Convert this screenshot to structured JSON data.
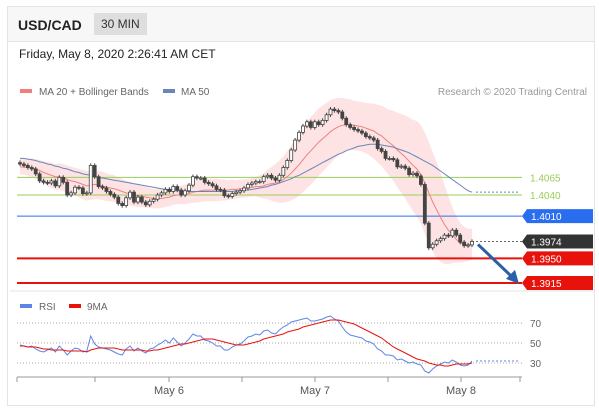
{
  "header": {
    "symbol": "USD/CAD",
    "timeframe": "30 MIN"
  },
  "datetime": "Friday, May 8, 2020 2:26:41 AM CET",
  "colors": {
    "up_candle": "#444444",
    "down_candle": "#444444",
    "ma20": "#f08080",
    "bands": "#fde0e0",
    "ma50": "#6a86b8",
    "support": "#e8120c",
    "resistance": "#9acd5a",
    "pivot": "#2a6ef0",
    "current": "#333333",
    "rsi": "#5b86e5",
    "rsi_ma": "#e8120c",
    "arrow": "#2b5fa8"
  },
  "chart_data": [
    {
      "type": "line",
      "title": "",
      "legend": {
        "ma20": "MA 20 + Bollinger Bands",
        "ma50": "MA 50",
        "placement": "top-left"
      },
      "credit": "Research © 2020 Trading Central",
      "ylim": [
        1.3905,
        1.4175
      ],
      "x_ticks": [
        "May 6",
        "May 7",
        "May 8"
      ],
      "levels": [
        {
          "value": 1.4065,
          "label": "1.4065",
          "kind": "resistance"
        },
        {
          "value": 1.404,
          "label": "1.4040",
          "kind": "resistance"
        },
        {
          "value": 1.401,
          "label": "1.4010",
          "kind": "pivot"
        },
        {
          "value": 1.3974,
          "label": "1.3974",
          "kind": "current"
        },
        {
          "value": 1.395,
          "label": "1.3950",
          "kind": "support"
        },
        {
          "value": 1.3915,
          "label": "1.3915",
          "kind": "support"
        }
      ],
      "close": [
        1.4084,
        1.4082,
        1.4079,
        1.4077,
        1.407,
        1.406,
        1.4058,
        1.4057,
        1.406,
        1.4053,
        1.4065,
        1.4058,
        1.404,
        1.4043,
        1.4051,
        1.405,
        1.4042,
        1.4043,
        1.4082,
        1.4066,
        1.4052,
        1.405,
        1.4045,
        1.4041,
        1.4037,
        1.4028,
        1.4025,
        1.4036,
        1.4044,
        1.403,
        1.4037,
        1.403,
        1.4026,
        1.4031,
        1.4034,
        1.404,
        1.4043,
        1.4048,
        1.4045,
        1.4052,
        1.4047,
        1.404,
        1.4046,
        1.4054,
        1.4066,
        1.4064,
        1.4064,
        1.4058,
        1.4056,
        1.4053,
        1.4048,
        1.4047,
        1.4039,
        1.4038,
        1.4042,
        1.4044,
        1.4046,
        1.405,
        1.4055,
        1.4057,
        1.4059,
        1.4059,
        1.4066,
        1.4068,
        1.4064,
        1.4061,
        1.4068,
        1.4079,
        1.4089,
        1.4104,
        1.4118,
        1.4129,
        1.4138,
        1.4144,
        1.4136,
        1.4144,
        1.414,
        1.4146,
        1.4154,
        1.4162,
        1.416,
        1.4158,
        1.4149,
        1.414,
        1.4136,
        1.4133,
        1.4131,
        1.4128,
        1.4123,
        1.4121,
        1.4118,
        1.4106,
        1.4102,
        1.4092,
        1.4092,
        1.409,
        1.408,
        1.4081,
        1.4078,
        1.4069,
        1.4071,
        1.4067,
        1.4055,
        1.4,
        1.3965,
        1.397,
        1.3975,
        1.3978,
        1.3983,
        1.3982,
        1.399,
        1.3983,
        1.3973,
        1.3968,
        1.3969,
        1.3974
      ],
      "ma20": [
        1.408,
        1.408,
        1.4079,
        1.4079,
        1.4077,
        1.4075,
        1.4072,
        1.407,
        1.4068,
        1.4066,
        1.4066,
        1.4065,
        1.4062,
        1.406,
        1.4059,
        1.4057,
        1.4055,
        1.4053,
        1.4054,
        1.4055,
        1.4054,
        1.4053,
        1.4051,
        1.405,
        1.4049,
        1.4047,
        1.4045,
        1.4043,
        1.4042,
        1.404,
        1.4039,
        1.4038,
        1.4037,
        1.4036,
        1.4035,
        1.4035,
        1.4035,
        1.4036,
        1.4037,
        1.4039,
        1.404,
        1.404,
        1.4041,
        1.4042,
        1.4044,
        1.4045,
        1.4046,
        1.4047,
        1.4047,
        1.4047,
        1.4047,
        1.4047,
        1.4047,
        1.4047,
        1.4048,
        1.4048,
        1.4049,
        1.4049,
        1.405,
        1.4051,
        1.4052,
        1.4052,
        1.4053,
        1.4055,
        1.4056,
        1.4057,
        1.4059,
        1.4062,
        1.4066,
        1.4071,
        1.4077,
        1.4083,
        1.409,
        1.4097,
        1.4103,
        1.4109,
        1.4115,
        1.412,
        1.4125,
        1.413,
        1.4134,
        1.4137,
        1.4139,
        1.414,
        1.414,
        1.4139,
        1.4138,
        1.4137,
        1.4135,
        1.4133,
        1.4131,
        1.4127,
        1.4124,
        1.4119,
        1.4114,
        1.411,
        1.4104,
        1.4099,
        1.4094,
        1.4088,
        1.4082,
        1.4077,
        1.4069,
        1.4057,
        1.4043,
        1.403,
        1.4019,
        1.4008,
        1.3998,
        1.399,
        1.3983,
        1.3977,
        1.3972,
        1.397,
        1.3969,
        1.397
      ],
      "band_width": [
        0.0011,
        0.0011,
        0.0012,
        0.0013,
        0.0014,
        0.0015,
        0.0016,
        0.0017,
        0.0018,
        0.0018,
        0.0019,
        0.0019,
        0.002,
        0.002,
        0.002,
        0.002,
        0.0021,
        0.0021,
        0.0021,
        0.0021,
        0.002,
        0.002,
        0.002,
        0.0019,
        0.0019,
        0.0018,
        0.0018,
        0.0017,
        0.0017,
        0.0016,
        0.0016,
        0.0015,
        0.0015,
        0.0014,
        0.0014,
        0.0014,
        0.0013,
        0.0013,
        0.0013,
        0.0013,
        0.0013,
        0.0013,
        0.0014,
        0.0014,
        0.0015,
        0.0016,
        0.0016,
        0.0016,
        0.0016,
        0.0016,
        0.0016,
        0.0015,
        0.0015,
        0.0014,
        0.0014,
        0.0013,
        0.0013,
        0.0013,
        0.0013,
        0.0013,
        0.0014,
        0.0016,
        0.0018,
        0.0021,
        0.0024,
        0.0027,
        0.003,
        0.0033,
        0.0036,
        0.0039,
        0.0042,
        0.0044,
        0.0046,
        0.0047,
        0.0048,
        0.0048,
        0.0048,
        0.0047,
        0.0046,
        0.0045,
        0.0043,
        0.0041,
        0.0039,
        0.0037,
        0.0036,
        0.0035,
        0.0035,
        0.0035,
        0.0036,
        0.0037,
        0.0039,
        0.0041,
        0.0043,
        0.0045,
        0.0047,
        0.005,
        0.0053,
        0.0056,
        0.0059,
        0.0062,
        0.0065,
        0.0068,
        0.007,
        0.0072,
        0.0072,
        0.0071,
        0.0068,
        0.0063,
        0.0056,
        0.0048,
        0.004,
        0.0033,
        0.0028,
        0.0025,
        0.0023,
        0.0022
      ],
      "ma50": [
        1.4092,
        1.4092,
        1.4091,
        1.409,
        1.4089,
        1.4087,
        1.4086,
        1.4084,
        1.4083,
        1.4081,
        1.408,
        1.4078,
        1.4077,
        1.4075,
        1.4073,
        1.4072,
        1.407,
        1.4069,
        1.4068,
        1.4066,
        1.4065,
        1.4064,
        1.4063,
        1.4062,
        1.4061,
        1.406,
        1.4059,
        1.4058,
        1.4057,
        1.4056,
        1.4055,
        1.4054,
        1.4053,
        1.4052,
        1.4051,
        1.405,
        1.4049,
        1.4048,
        1.4047,
        1.4047,
        1.4046,
        1.4046,
        1.4045,
        1.4045,
        1.4045,
        1.4045,
        1.4045,
        1.4045,
        1.4045,
        1.4045,
        1.4045,
        1.4045,
        1.4045,
        1.4045,
        1.4045,
        1.4046,
        1.4046,
        1.4047,
        1.4047,
        1.4048,
        1.4049,
        1.405,
        1.4051,
        1.4052,
        1.4054,
        1.4055,
        1.4057,
        1.4059,
        1.4061,
        1.4063,
        1.4066,
        1.4068,
        1.4071,
        1.4074,
        1.4077,
        1.408,
        1.4083,
        1.4086,
        1.4089,
        1.4092,
        1.4095,
        1.4098,
        1.41,
        1.4103,
        1.4105,
        1.4107,
        1.4109,
        1.411,
        1.4111,
        1.4112,
        1.4112,
        1.4112,
        1.4111,
        1.411,
        1.4109,
        1.4108,
        1.4106,
        1.4104,
        1.4102,
        1.41,
        1.4097,
        1.4094,
        1.4091,
        1.4088,
        1.4085,
        1.4082,
        1.4078,
        1.4074,
        1.407,
        1.4066,
        1.4062,
        1.4058,
        1.4054,
        1.405,
        1.4046,
        1.4044
      ]
    },
    {
      "type": "line",
      "legend": {
        "rsi": "RSI",
        "rsi_ma": "9MA",
        "placement": "top-left"
      },
      "ylim": [
        18,
        78
      ],
      "y_ticks": [
        70,
        50,
        30
      ],
      "rsi": [
        48,
        47,
        46,
        47,
        44,
        42,
        41,
        43,
        45,
        41,
        47,
        43,
        38,
        42,
        45,
        44,
        41,
        42,
        57,
        49,
        46,
        45,
        44,
        43,
        41,
        39,
        38,
        44,
        47,
        42,
        45,
        42,
        40,
        44,
        45,
        48,
        50,
        53,
        50,
        55,
        51,
        47,
        50,
        54,
        59,
        57,
        57,
        53,
        52,
        50,
        47,
        47,
        43,
        43,
        46,
        48,
        49,
        52,
        56,
        57,
        59,
        58,
        62,
        63,
        60,
        59,
        63,
        66,
        68,
        71,
        72,
        73,
        74,
        75,
        72,
        72,
        73,
        74,
        76,
        77,
        74,
        72,
        66,
        61,
        58,
        57,
        56,
        55,
        52,
        51,
        49,
        44,
        42,
        38,
        38,
        37,
        33,
        34,
        32,
        30,
        31,
        29,
        28,
        22,
        20,
        24,
        27,
        29,
        31,
        30,
        33,
        31,
        28,
        27,
        28,
        32
      ],
      "rsi_ma": [
        47,
        47,
        46,
        46,
        46,
        45,
        44,
        44,
        43,
        43,
        43,
        43,
        42,
        42,
        42,
        42,
        42,
        41,
        43,
        44,
        45,
        45,
        45,
        45,
        45,
        44,
        43,
        43,
        43,
        43,
        43,
        43,
        42,
        42,
        43,
        43,
        44,
        45,
        46,
        47,
        48,
        49,
        49,
        50,
        51,
        52,
        53,
        54,
        54,
        54,
        53,
        52,
        51,
        50,
        49,
        48,
        48,
        48,
        49,
        50,
        51,
        52,
        54,
        55,
        56,
        57,
        58,
        59,
        61,
        62,
        63,
        64,
        66,
        67,
        68,
        69,
        70,
        71,
        72,
        73,
        73,
        73,
        72,
        71,
        70,
        69,
        67,
        65,
        63,
        61,
        59,
        57,
        55,
        52,
        49,
        46,
        44,
        42,
        40,
        38,
        36,
        34,
        33,
        32,
        30,
        29,
        28,
        28,
        27,
        27,
        28,
        29,
        29,
        29,
        29,
        30
      ]
    }
  ]
}
